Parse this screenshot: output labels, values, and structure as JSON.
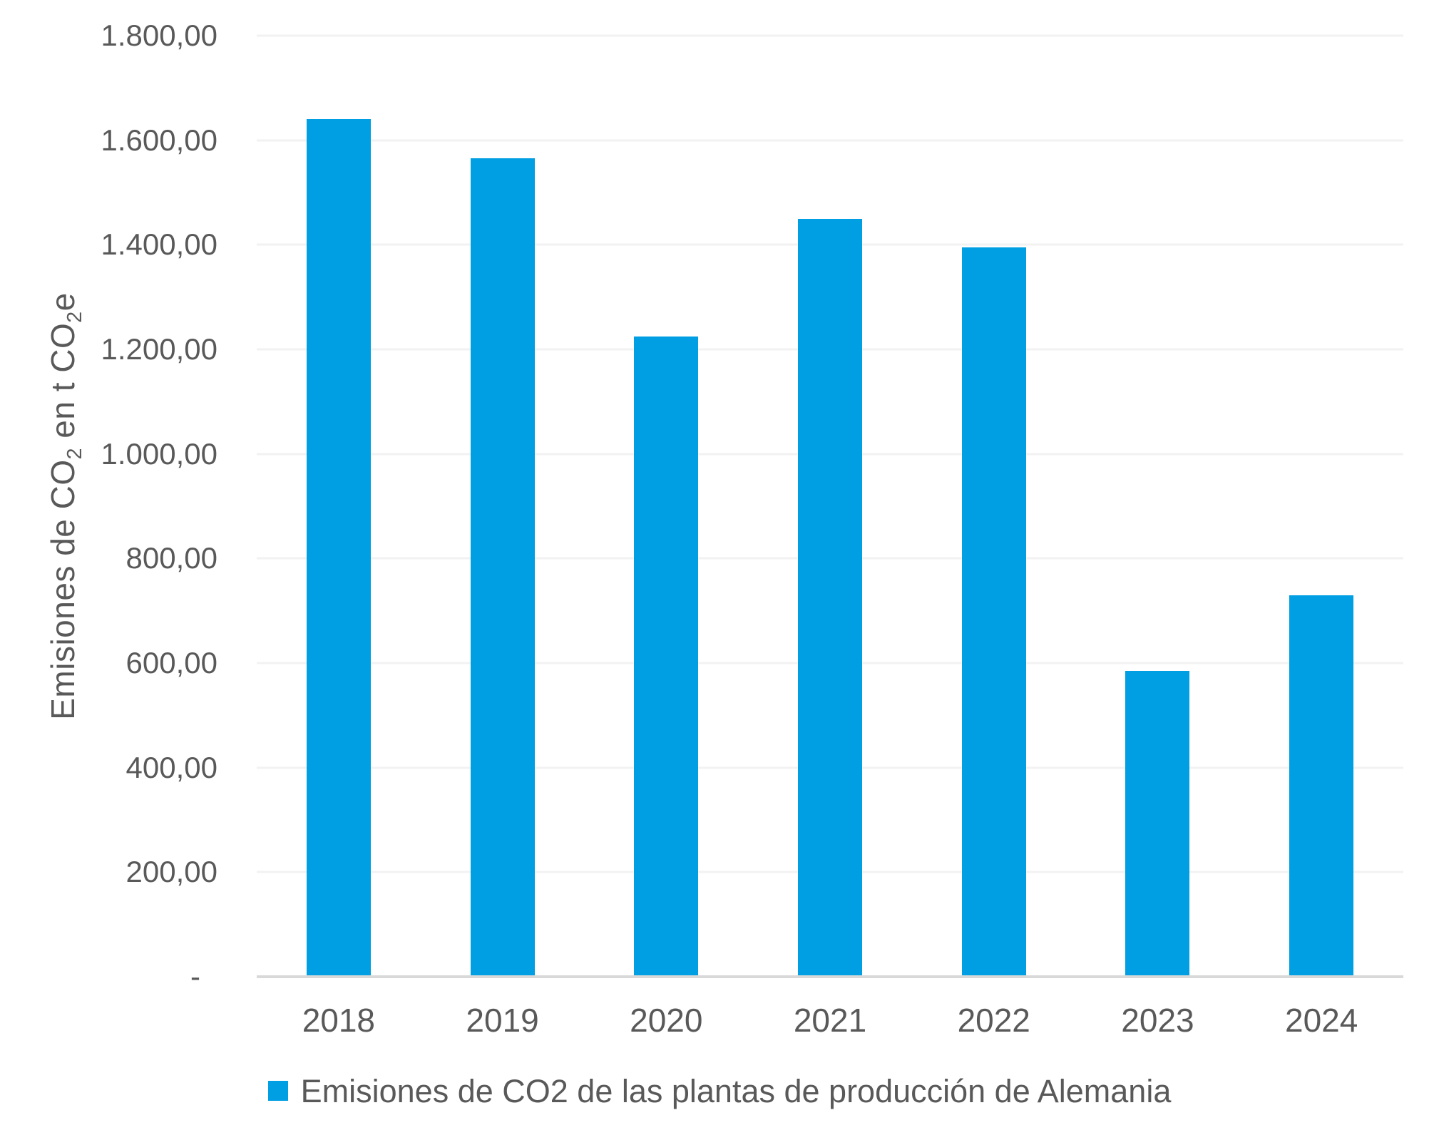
{
  "chart_data": {
    "type": "bar",
    "title": "",
    "xlabel": "",
    "ylabel": "Emisiones de CO₂ en t CO₂e",
    "categories": [
      "2018",
      "2019",
      "2020",
      "2021",
      "2022",
      "2023",
      "2024"
    ],
    "series": [
      {
        "name": "Emisiones de CO2 de las plantas de producción de Alemania",
        "values": [
          1640,
          1565,
          1225,
          1450,
          1395,
          585,
          730
        ]
      }
    ],
    "ylim": [
      0,
      1800
    ],
    "y_tick_step": 200,
    "y_ticks": [
      {
        "value": 0,
        "label": "-"
      },
      {
        "value": 200,
        "label": "200,00"
      },
      {
        "value": 400,
        "label": "400,00"
      },
      {
        "value": 600,
        "label": "600,00"
      },
      {
        "value": 800,
        "label": "800,00"
      },
      {
        "value": 1000,
        "label": "1.000,00"
      },
      {
        "value": 1200,
        "label": "1.200,00"
      },
      {
        "value": 1400,
        "label": "1.400,00"
      },
      {
        "value": 1600,
        "label": "1.600,00"
      },
      {
        "value": 1800,
        "label": "1.800,00"
      }
    ],
    "grid": true,
    "legend_position": "bottom"
  },
  "legend": {
    "label": "Emisiones de CO2 de las plantas de producción de Alemania"
  },
  "colors": {
    "bar": "#009EE2",
    "gridline": "#F2F2F2",
    "axis_line": "#D9D9D9",
    "text": "#595959",
    "background": "#FFFFFF"
  }
}
